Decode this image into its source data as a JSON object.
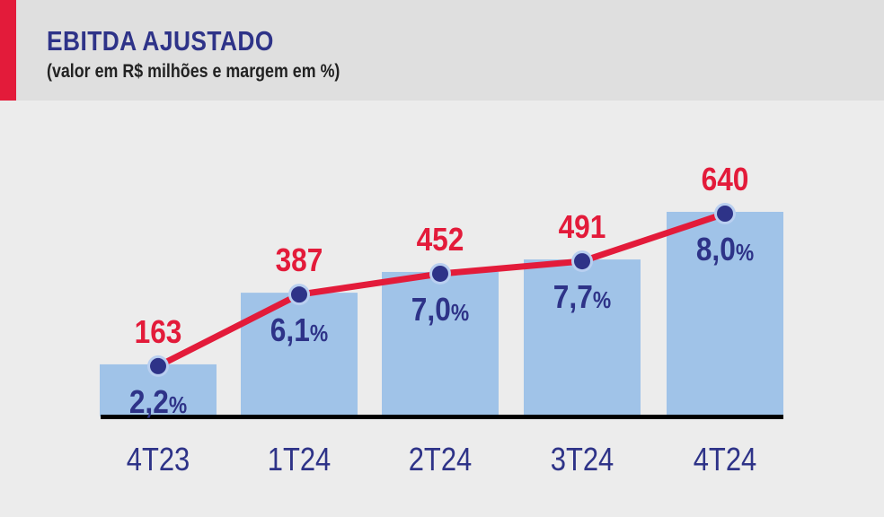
{
  "header": {
    "title": "EBITDA AJUSTADO",
    "subtitle": "(valor em R$ milhões e margem em %)"
  },
  "colors": {
    "accent": "#e31b3a",
    "bar": "#a0c3e8",
    "text": "#2e3388",
    "line": "#e31b3a",
    "marker": "#2e3388"
  },
  "chart_data": {
    "type": "bar",
    "title": "EBITDA AJUSTADO",
    "subtitle": "(valor em R$ milhões e margem em %)",
    "categories": [
      "4T23",
      "1T24",
      "2T24",
      "3T24",
      "4T24"
    ],
    "series": [
      {
        "name": "EBITDA ajustado (R$ milhões)",
        "type": "bar+line",
        "values": [
          163,
          387,
          452,
          491,
          640
        ],
        "labels": [
          "163",
          "387",
          "452",
          "491",
          "640"
        ]
      },
      {
        "name": "Margem (%)",
        "values": [
          2.2,
          6.1,
          7.0,
          7.7,
          8.0
        ],
        "labels": [
          "2,2",
          "6,1",
          "7,0",
          "7,7",
          "8,0"
        ],
        "suffix": "%"
      }
    ],
    "ylim": [
      0,
      640
    ],
    "grid": false
  }
}
